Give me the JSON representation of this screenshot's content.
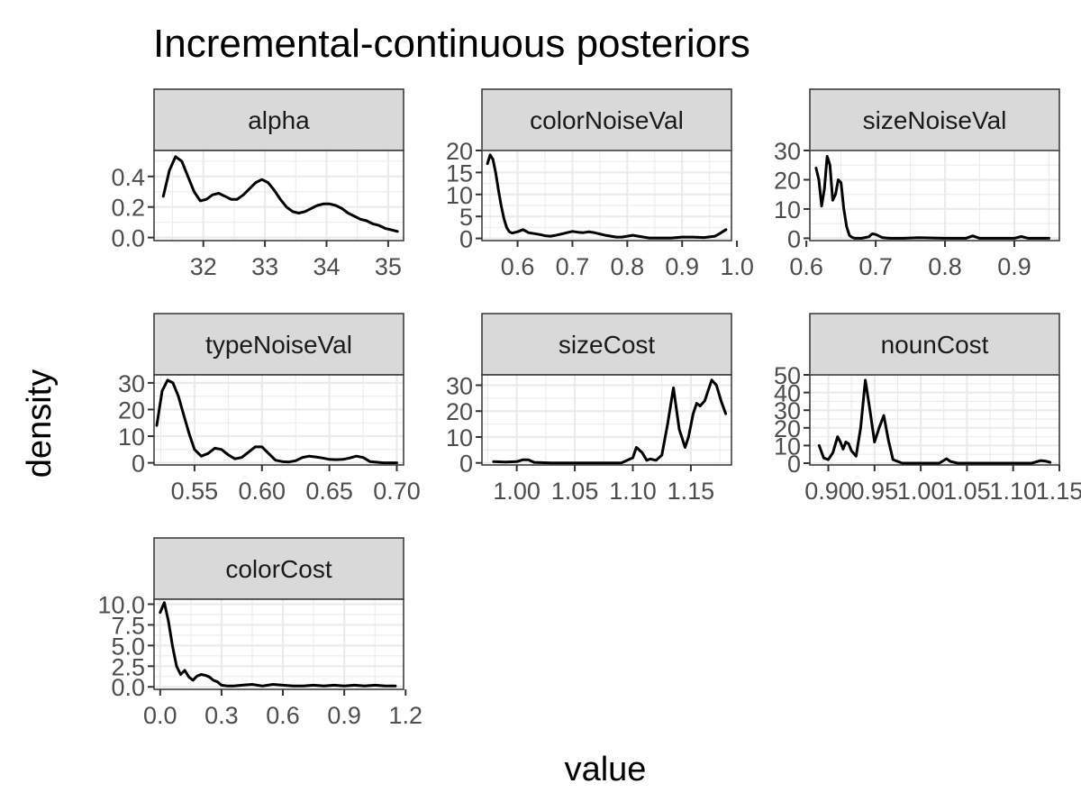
{
  "title": "Incremental-continuous posteriors",
  "xlabel": "value",
  "ylabel": "density",
  "colors": {
    "strip_fill": "#d9d9d9",
    "panel_border": "#333333",
    "grid": "#ebebeb",
    "line": "#000000",
    "tick_text": "#4d4d4d"
  },
  "chart_data": {
    "type": "line",
    "facet_layout": "wrap-3-columns",
    "grid": true,
    "legend": "none",
    "panels": [
      {
        "name": "alpha",
        "xlim": [
          31.2,
          35.25
        ],
        "ylim": [
          -0.02,
          0.57
        ],
        "xticks": [
          32,
          33,
          34,
          35
        ],
        "xtick_labels": [
          "32",
          "33",
          "34",
          "35"
        ],
        "yticks": [
          0,
          0.2,
          0.4
        ],
        "ytick_labels": [
          "0.0",
          "0.2",
          "0.4"
        ],
        "x": [
          31.35,
          31.45,
          31.55,
          31.65,
          31.75,
          31.85,
          31.95,
          32.05,
          32.15,
          32.25,
          32.35,
          32.45,
          32.55,
          32.65,
          32.75,
          32.85,
          32.95,
          33.05,
          33.15,
          33.25,
          33.35,
          33.45,
          33.55,
          33.65,
          33.75,
          33.85,
          33.95,
          34.05,
          34.15,
          34.25,
          34.35,
          34.45,
          34.55,
          34.65,
          34.75,
          34.85,
          34.95,
          35.05,
          35.15
        ],
        "y": [
          0.27,
          0.44,
          0.53,
          0.5,
          0.4,
          0.3,
          0.24,
          0.25,
          0.28,
          0.29,
          0.27,
          0.25,
          0.25,
          0.28,
          0.32,
          0.36,
          0.38,
          0.36,
          0.31,
          0.25,
          0.2,
          0.17,
          0.16,
          0.17,
          0.19,
          0.21,
          0.22,
          0.22,
          0.21,
          0.19,
          0.16,
          0.14,
          0.12,
          0.11,
          0.09,
          0.08,
          0.06,
          0.05,
          0.04
        ]
      },
      {
        "name": "colorNoiseVal",
        "xlim": [
          0.535,
          0.99
        ],
        "ylim": [
          -0.5,
          20
        ],
        "xticks": [
          0.6,
          0.7,
          0.8,
          0.9,
          1.0
        ],
        "xtick_labels": [
          "0.6",
          "0.7",
          "0.8",
          "0.9",
          "1.0"
        ],
        "yticks": [
          0,
          5,
          10,
          15,
          20
        ],
        "ytick_labels": [
          "0",
          "5",
          "10",
          "15",
          "20"
        ],
        "x": [
          0.545,
          0.55,
          0.555,
          0.56,
          0.565,
          0.57,
          0.575,
          0.58,
          0.585,
          0.59,
          0.6,
          0.61,
          0.62,
          0.63,
          0.64,
          0.65,
          0.66,
          0.67,
          0.68,
          0.69,
          0.7,
          0.71,
          0.72,
          0.73,
          0.74,
          0.75,
          0.76,
          0.77,
          0.78,
          0.79,
          0.8,
          0.81,
          0.82,
          0.84,
          0.86,
          0.88,
          0.9,
          0.92,
          0.94,
          0.96,
          0.97,
          0.98
        ],
        "y": [
          17,
          19,
          18,
          15,
          11,
          7.5,
          4.5,
          2.5,
          1.5,
          1.2,
          1.5,
          2,
          1.3,
          1.1,
          0.9,
          0.6,
          0.5,
          0.7,
          1.0,
          1.3,
          1.6,
          1.4,
          1.3,
          1.5,
          1.3,
          1.0,
          0.7,
          0.5,
          0.3,
          0.3,
          0.5,
          0.7,
          0.5,
          0.1,
          0.1,
          0.1,
          0.3,
          0.3,
          0.2,
          0.5,
          1.2,
          2.0
        ]
      },
      {
        "name": "sizeNoiseVal",
        "xlim": [
          0.605,
          0.965
        ],
        "ylim": [
          -0.8,
          30
        ],
        "xticks": [
          0.6,
          0.7,
          0.8,
          0.9
        ],
        "xtick_labels": [
          "0.6",
          "0.7",
          "0.8",
          "0.9"
        ],
        "yticks": [
          0,
          10,
          20,
          30
        ],
        "ytick_labels": [
          "0",
          "10",
          "20",
          "30"
        ],
        "x": [
          0.614,
          0.618,
          0.622,
          0.626,
          0.63,
          0.634,
          0.638,
          0.642,
          0.646,
          0.65,
          0.654,
          0.658,
          0.662,
          0.666,
          0.67,
          0.68,
          0.69,
          0.695,
          0.7,
          0.71,
          0.72,
          0.74,
          0.76,
          0.8,
          0.83,
          0.84,
          0.85,
          0.9,
          0.91,
          0.92,
          0.95
        ],
        "y": [
          24,
          20,
          11,
          17,
          28,
          25,
          13,
          15,
          20,
          19,
          10,
          4,
          1,
          0.3,
          0,
          0,
          0.5,
          1.5,
          1.3,
          0.2,
          0,
          0,
          0.2,
          0,
          0,
          0.8,
          0,
          0,
          0.6,
          0,
          0
        ]
      },
      {
        "name": "typeNoiseVal",
        "xlim": [
          0.52,
          0.705
        ],
        "ylim": [
          -0.8,
          33
        ],
        "xticks": [
          0.55,
          0.6,
          0.65,
          0.7
        ],
        "xtick_labels": [
          "0.55",
          "0.60",
          "0.65",
          "0.70"
        ],
        "yticks": [
          0,
          10,
          20,
          30
        ],
        "ytick_labels": [
          "0",
          "10",
          "20",
          "30"
        ],
        "x": [
          0.522,
          0.526,
          0.53,
          0.534,
          0.538,
          0.542,
          0.546,
          0.55,
          0.555,
          0.56,
          0.565,
          0.57,
          0.575,
          0.58,
          0.585,
          0.59,
          0.595,
          0.6,
          0.605,
          0.61,
          0.615,
          0.62,
          0.625,
          0.63,
          0.635,
          0.64,
          0.645,
          0.65,
          0.655,
          0.66,
          0.665,
          0.67,
          0.675,
          0.68,
          0.69,
          0.7
        ],
        "y": [
          14,
          27,
          31,
          30,
          25,
          18,
          11,
          5,
          2.5,
          3.5,
          5.5,
          5,
          3,
          1.5,
          2,
          4,
          6,
          6,
          3.5,
          1,
          0.5,
          0.3,
          0.8,
          2,
          2.5,
          2.2,
          1.8,
          1.3,
          1.2,
          1.3,
          1.8,
          2.5,
          2,
          0.5,
          0,
          0
        ]
      },
      {
        "name": "sizeCost",
        "xlim": [
          0.97,
          1.185
        ],
        "ylim": [
          -0.8,
          34
        ],
        "xticks": [
          1.0,
          1.05,
          1.1,
          1.15
        ],
        "xtick_labels": [
          "1.00",
          "1.05",
          "1.10",
          "1.15"
        ],
        "yticks": [
          0,
          10,
          20,
          30
        ],
        "ytick_labels": [
          "0",
          "10",
          "20",
          "30"
        ],
        "x": [
          0.98,
          0.99,
          1.0,
          1.005,
          1.01,
          1.015,
          1.03,
          1.06,
          1.09,
          1.1,
          1.103,
          1.108,
          1.112,
          1.115,
          1.12,
          1.125,
          1.13,
          1.135,
          1.14,
          1.145,
          1.148,
          1.152,
          1.155,
          1.158,
          1.162,
          1.165,
          1.168,
          1.172,
          1.176,
          1.18
        ],
        "y": [
          0.5,
          0.3,
          0.5,
          1.2,
          1.2,
          0.2,
          0,
          0,
          0,
          2,
          6,
          4,
          1,
          1.5,
          1,
          3,
          15,
          29,
          13,
          6,
          10,
          19,
          23,
          22,
          24,
          28,
          32,
          30,
          24,
          19
        ]
      },
      {
        "name": "nounCost",
        "xlim": [
          0.88,
          1.15
        ],
        "ylim": [
          -1,
          50
        ],
        "xticks": [
          0.9,
          0.95,
          1.0,
          1.05,
          1.1,
          1.15
        ],
        "xtick_labels": [
          "0.90",
          "0.95",
          "1.00",
          "1.05",
          "1.10",
          "1.15"
        ],
        "yticks": [
          0,
          10,
          20,
          30,
          40,
          50
        ],
        "ytick_labels": [
          "0",
          "10",
          "20",
          "30",
          "40",
          "50"
        ],
        "x": [
          0.89,
          0.895,
          0.9,
          0.905,
          0.91,
          0.913,
          0.916,
          0.919,
          0.922,
          0.925,
          0.93,
          0.935,
          0.94,
          0.945,
          0.95,
          0.955,
          0.96,
          0.965,
          0.97,
          0.98,
          1.0,
          1.02,
          1.028,
          1.032,
          1.04,
          1.08,
          1.12,
          1.13,
          1.135,
          1.14
        ],
        "y": [
          10,
          3,
          2,
          6,
          15,
          12,
          8,
          12,
          11,
          7,
          4,
          20,
          47,
          30,
          12,
          20,
          27,
          13,
          2,
          0,
          0,
          0,
          2.5,
          1,
          0,
          0,
          0,
          1.5,
          1.2,
          0.5
        ]
      },
      {
        "name": "colorCost",
        "xlim": [
          -0.03,
          1.19
        ],
        "ylim": [
          -0.3,
          10.6
        ],
        "xticks": [
          0,
          0.3,
          0.6,
          0.9,
          1.2
        ],
        "xtick_labels": [
          "0.0",
          "0.3",
          "0.6",
          "0.9",
          "1.2"
        ],
        "yticks": [
          0,
          2.5,
          5,
          7.5,
          10
        ],
        "ytick_labels": [
          "0.0",
          "2.5",
          "5.0",
          "7.5",
          "10.0"
        ],
        "x": [
          0.0,
          0.02,
          0.04,
          0.06,
          0.08,
          0.1,
          0.12,
          0.14,
          0.16,
          0.18,
          0.2,
          0.22,
          0.24,
          0.26,
          0.28,
          0.3,
          0.33,
          0.36,
          0.4,
          0.45,
          0.5,
          0.55,
          0.6,
          0.65,
          0.7,
          0.75,
          0.8,
          0.85,
          0.9,
          0.95,
          1.0,
          1.05,
          1.1,
          1.15
        ],
        "y": [
          9,
          10.2,
          8,
          5,
          2.5,
          1.5,
          2,
          1.2,
          0.8,
          1.3,
          1.5,
          1.4,
          1.2,
          0.8,
          0.6,
          0.2,
          0.1,
          0.1,
          0.2,
          0.3,
          0.1,
          0.3,
          0.2,
          0.1,
          0.1,
          0.2,
          0.1,
          0.2,
          0.1,
          0.2,
          0.1,
          0.2,
          0.1,
          0.1
        ]
      }
    ]
  }
}
